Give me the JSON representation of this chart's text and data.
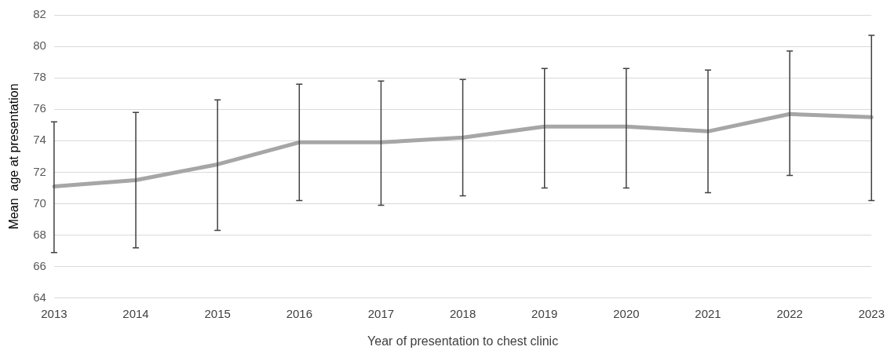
{
  "chart_data": {
    "type": "line",
    "xlabel": "Year of presentation to chest clinic",
    "ylabel": "Mean  age at presentation",
    "categories": [
      "2013",
      "2014",
      "2015",
      "2016",
      "2017",
      "2018",
      "2019",
      "2020",
      "2021",
      "2022",
      "2023"
    ],
    "series": [
      {
        "color": "#a6a6a6",
        "values": [
          71.1,
          71.5,
          72.5,
          73.9,
          73.9,
          74.2,
          74.9,
          74.9,
          74.6,
          75.7,
          75.5
        ],
        "errors": [
          [
            66.9,
            75.2
          ],
          [
            67.2,
            75.8
          ],
          [
            68.3,
            76.6
          ],
          [
            70.2,
            77.6
          ],
          [
            69.9,
            77.8
          ],
          [
            70.5,
            77.9
          ],
          [
            71.0,
            78.6
          ],
          [
            71.0,
            78.6
          ],
          [
            70.7,
            78.5
          ],
          [
            71.8,
            79.7
          ],
          [
            70.2,
            80.7
          ]
        ]
      }
    ],
    "ylim": [
      64,
      82
    ],
    "yticks": [
      64,
      66,
      68,
      70,
      72,
      74,
      76,
      78,
      80,
      82
    ],
    "grid": "y",
    "legend": false,
    "marker": "none",
    "line_style": "solid"
  }
}
